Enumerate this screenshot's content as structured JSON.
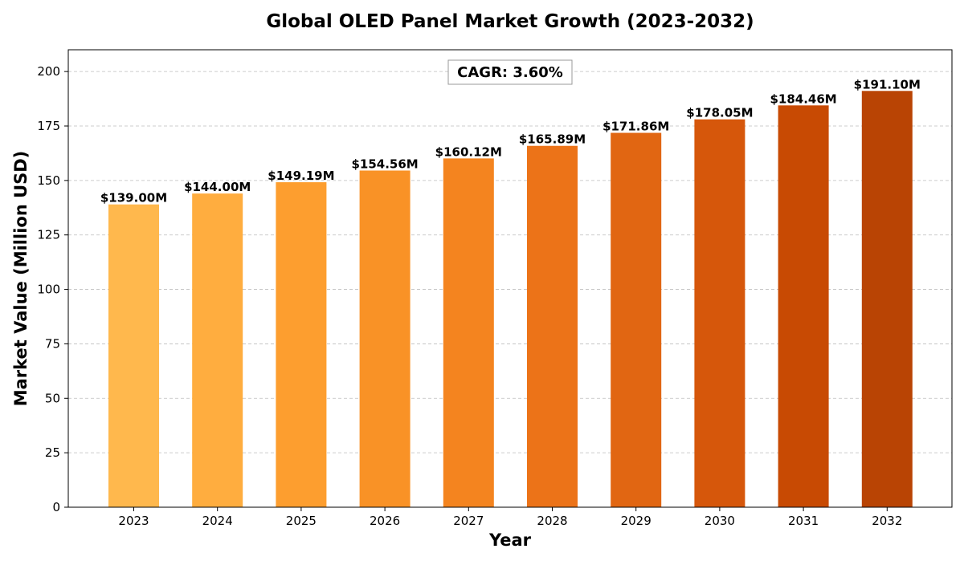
{
  "chart_data": {
    "type": "bar",
    "title": "Global OLED Panel Market Growth (2023-2032)",
    "xlabel": "Year",
    "ylabel": "Market Value (Million USD)",
    "categories": [
      "2023",
      "2024",
      "2025",
      "2026",
      "2027",
      "2028",
      "2029",
      "2030",
      "2031",
      "2032"
    ],
    "values": [
      139.0,
      144.0,
      149.19,
      154.56,
      160.12,
      165.89,
      171.86,
      178.05,
      184.46,
      191.1
    ],
    "data_labels": [
      "$139.00M",
      "$144.00M",
      "$149.19M",
      "$154.56M",
      "$160.12M",
      "$165.89M",
      "$171.86M",
      "$178.05M",
      "$184.46M",
      "$191.10M"
    ],
    "ylim": [
      0,
      210
    ],
    "yticks": [
      0,
      25,
      50,
      75,
      100,
      125,
      150,
      175,
      200
    ],
    "grid": "horizontal-dashed",
    "annotation": "CAGR: 3.60%",
    "bar_colors": [
      "#ffb84d",
      "#ffad3f",
      "#fd9e2f",
      "#f99226",
      "#f4841f",
      "#ec7318",
      "#e16612",
      "#d6570b",
      "#c84a03",
      "#b94404"
    ]
  }
}
